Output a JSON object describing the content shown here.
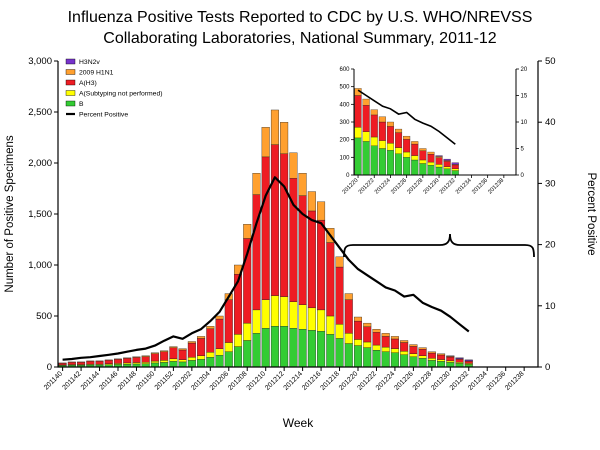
{
  "title": {
    "line1": "Influenza Positive Tests Reported to CDC by U.S. WHO/NREVSS",
    "line2": "Collaborating Laboratories, National Summary, 2011-12"
  },
  "chart_data": {
    "type": "bar",
    "title": "Influenza Positive Tests Reported to CDC by U.S. WHO/NREVSS Collaborating Laboratories, National Summary, 2011-12",
    "xlabel": "Week",
    "ylabel_left": "Number of Positive Specimens",
    "ylabel_right": "Percent Positive",
    "ylim_left": [
      0,
      3000
    ],
    "ylim_right": [
      0,
      50
    ],
    "grid": false,
    "legend_position": "upper-left",
    "weeks": [
      "201140",
      "201141",
      "201142",
      "201143",
      "201144",
      "201145",
      "201146",
      "201147",
      "201148",
      "201149",
      "201150",
      "201151",
      "201152",
      "201201",
      "201202",
      "201203",
      "201204",
      "201205",
      "201206",
      "201207",
      "201208",
      "201209",
      "201210",
      "201211",
      "201212",
      "201213",
      "201214",
      "201215",
      "201216",
      "201217",
      "201218",
      "201219",
      "201220",
      "201221",
      "201222",
      "201223",
      "201224",
      "201225",
      "201226",
      "201227",
      "201228",
      "201229",
      "201230",
      "201231",
      "201232",
      "201233",
      "201234",
      "201235",
      "201236",
      "201237",
      "201238",
      "201239"
    ],
    "series": [
      {
        "name": "B",
        "color": "#33cc33",
        "values": [
          15,
          18,
          18,
          20,
          20,
          22,
          25,
          28,
          30,
          32,
          40,
          45,
          55,
          50,
          65,
          75,
          95,
          115,
          150,
          200,
          260,
          330,
          380,
          400,
          400,
          380,
          370,
          360,
          350,
          320,
          280,
          230,
          210,
          190,
          165,
          150,
          140,
          120,
          100,
          85,
          65,
          55,
          45,
          35,
          25,
          0,
          0,
          0,
          0,
          0,
          0,
          0
        ]
      },
      {
        "name": "A(Subtyping not performed)",
        "color": "#ffff00",
        "values": [
          5,
          6,
          6,
          8,
          8,
          10,
          10,
          12,
          14,
          15,
          18,
          20,
          25,
          22,
          30,
          35,
          50,
          65,
          90,
          120,
          170,
          230,
          280,
          300,
          290,
          260,
          240,
          220,
          210,
          180,
          140,
          100,
          60,
          55,
          50,
          45,
          40,
          35,
          30,
          25,
          20,
          18,
          15,
          12,
          10,
          0,
          0,
          0,
          0,
          0,
          0,
          0
        ]
      },
      {
        "name": "A(H3)",
        "color": "#ee1c23",
        "values": [
          18,
          22,
          24,
          28,
          30,
          34,
          40,
          45,
          50,
          55,
          72,
          85,
          108,
          95,
          140,
          170,
          230,
          290,
          420,
          590,
          830,
          1130,
          1400,
          1480,
          1400,
          1210,
          1070,
          950,
          880,
          720,
          560,
          330,
          180,
          150,
          125,
          105,
          95,
          85,
          72,
          65,
          52,
          45,
          38,
          30,
          22,
          0,
          0,
          0,
          0,
          0,
          0,
          0
        ]
      },
      {
        "name": "2009 H1N1",
        "color": "#ffa02f",
        "values": [
          2,
          4,
          2,
          4,
          2,
          4,
          5,
          5,
          6,
          8,
          10,
          10,
          12,
          13,
          15,
          20,
          25,
          30,
          60,
          90,
          140,
          210,
          290,
          340,
          310,
          250,
          220,
          190,
          180,
          140,
          100,
          60,
          40,
          35,
          30,
          30,
          25,
          20,
          18,
          15,
          13,
          12,
          7,
          5,
          3,
          0,
          0,
          0,
          0,
          0,
          0,
          0
        ]
      },
      {
        "name": "H3N2v",
        "color": "#7733cc",
        "values": [
          0,
          0,
          0,
          0,
          0,
          0,
          0,
          0,
          0,
          0,
          0,
          0,
          0,
          0,
          0,
          0,
          0,
          0,
          0,
          0,
          0,
          0,
          0,
          0,
          0,
          0,
          0,
          0,
          0,
          0,
          0,
          0,
          0,
          0,
          0,
          0,
          0,
          0,
          0,
          0,
          0,
          0,
          5,
          8,
          10,
          0,
          0,
          0,
          0,
          0,
          0,
          0
        ]
      }
    ],
    "percent_positive": [
      1.2,
      1.3,
      1.5,
      1.6,
      1.8,
      2.0,
      2.2,
      2.5,
      2.8,
      3.0,
      3.5,
      4.3,
      5.0,
      4.6,
      5.5,
      6.2,
      7.5,
      9.0,
      11.5,
      14.0,
      18.5,
      23.5,
      28.0,
      31.0,
      29.5,
      26.5,
      25.0,
      24.0,
      23.5,
      21.5,
      19.5,
      17.5,
      16.0,
      15.0,
      14.0,
      13.0,
      12.5,
      11.5,
      11.8,
      10.5,
      9.8,
      9.2,
      8.2,
      7.0,
      5.8,
      null,
      null,
      null,
      null,
      null,
      null,
      null
    ],
    "legend": [
      {
        "label": "H3N2v",
        "color": "#7733cc",
        "type": "box"
      },
      {
        "label": "2009 H1N1",
        "color": "#ffa02f",
        "type": "box"
      },
      {
        "label": "A(H3)",
        "color": "#ee1c23",
        "type": "box"
      },
      {
        "label": "A(Subtyping not performed)",
        "color": "#ffff00",
        "type": "box"
      },
      {
        "label": "B",
        "color": "#33cc33",
        "type": "box"
      },
      {
        "label": "Percent Positive",
        "color": "#000000",
        "type": "line"
      }
    ],
    "inset": {
      "start_week": "201220",
      "ylim_left": [
        0,
        600
      ],
      "ylim_right": [
        0,
        20
      ]
    }
  }
}
